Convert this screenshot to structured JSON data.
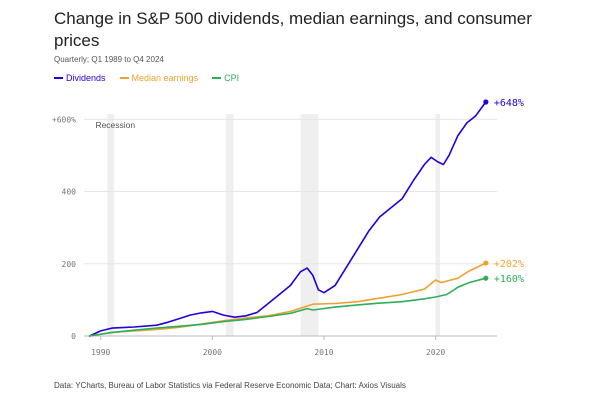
{
  "title": "Change in S&P 500 dividends, median earnings, and consumer prices",
  "subtitle": "Quarterly; Q1 1989 to Q4 2024",
  "source": "Data: YCharts, Bureau of Labor Statistics via Federal Reserve Economic Data; Chart: Axios Visuals",
  "colors": {
    "dividends": "#2200dd",
    "earnings": "#f0a030",
    "cpi": "#2fae5a",
    "recession": "#efefef",
    "grid": "#e6e6e6"
  },
  "chart_data": {
    "type": "line",
    "xlim": [
      1988.5,
      2025.5
    ],
    "ylim": [
      0,
      648
    ],
    "x_ticks": [
      {
        "value": 1990,
        "label": "1990"
      },
      {
        "value": 2000,
        "label": "2000"
      },
      {
        "value": 2010,
        "label": "2010"
      },
      {
        "value": 2020,
        "label": "2020"
      }
    ],
    "y_ticks": [
      {
        "value": 0,
        "label": "0"
      },
      {
        "value": 200,
        "label": "200"
      },
      {
        "value": 400,
        "label": "400"
      },
      {
        "value": 600,
        "label": "+600%"
      }
    ],
    "grid": true,
    "legend_position": "top-left",
    "recessions": [
      {
        "label": "Recession",
        "start": 1990.6,
        "end": 1991.2
      },
      {
        "start": 2001.2,
        "end": 2001.9
      },
      {
        "start": 2007.9,
        "end": 2009.5
      },
      {
        "start": 2020.0,
        "end": 2020.4
      }
    ],
    "series": [
      {
        "name": "Dividends",
        "color_key": "dividends",
        "end_label": "+648%",
        "points": [
          [
            1989,
            0
          ],
          [
            1990,
            14
          ],
          [
            1991,
            22
          ],
          [
            1993,
            25
          ],
          [
            1995,
            30
          ],
          [
            1996,
            38
          ],
          [
            1997,
            48
          ],
          [
            1998,
            58
          ],
          [
            1999,
            64
          ],
          [
            2000,
            68
          ],
          [
            2001,
            58
          ],
          [
            2002,
            52
          ],
          [
            2003,
            56
          ],
          [
            2004,
            65
          ],
          [
            2005,
            90
          ],
          [
            2006,
            115
          ],
          [
            2007,
            140
          ],
          [
            2007.9,
            178
          ],
          [
            2008.5,
            188
          ],
          [
            2009,
            168
          ],
          [
            2009.5,
            128
          ],
          [
            2010,
            120
          ],
          [
            2011,
            140
          ],
          [
            2012,
            190
          ],
          [
            2013,
            240
          ],
          [
            2014,
            290
          ],
          [
            2015,
            330
          ],
          [
            2016,
            355
          ],
          [
            2017,
            380
          ],
          [
            2018,
            430
          ],
          [
            2019,
            475
          ],
          [
            2019.6,
            495
          ],
          [
            2020.2,
            482
          ],
          [
            2020.7,
            475
          ],
          [
            2021.2,
            500
          ],
          [
            2022,
            555
          ],
          [
            2022.8,
            590
          ],
          [
            2023.6,
            610
          ],
          [
            2024.5,
            648
          ]
        ]
      },
      {
        "name": "Median earnings",
        "color_key": "earnings",
        "end_label": "+202%",
        "points": [
          [
            1989,
            0
          ],
          [
            1991,
            10
          ],
          [
            1993,
            14
          ],
          [
            1995,
            18
          ],
          [
            1997,
            24
          ],
          [
            1999,
            33
          ],
          [
            2001,
            42
          ],
          [
            2003,
            50
          ],
          [
            2005,
            56
          ],
          [
            2007,
            68
          ],
          [
            2009,
            88
          ],
          [
            2011,
            90
          ],
          [
            2013,
            95
          ],
          [
            2015,
            105
          ],
          [
            2017,
            115
          ],
          [
            2019,
            130
          ],
          [
            2020,
            155
          ],
          [
            2020.5,
            148
          ],
          [
            2021,
            152
          ],
          [
            2022,
            160
          ],
          [
            2023,
            180
          ],
          [
            2024.5,
            202
          ]
        ]
      },
      {
        "name": "CPI",
        "color_key": "cpi",
        "end_label": "+160%",
        "points": [
          [
            1989,
            0
          ],
          [
            1991,
            10
          ],
          [
            1993,
            16
          ],
          [
            1995,
            22
          ],
          [
            1997,
            27
          ],
          [
            1999,
            32
          ],
          [
            2001,
            40
          ],
          [
            2003,
            46
          ],
          [
            2005,
            54
          ],
          [
            2007,
            63
          ],
          [
            2008.5,
            76
          ],
          [
            2009,
            72
          ],
          [
            2011,
            80
          ],
          [
            2013,
            86
          ],
          [
            2015,
            91
          ],
          [
            2017,
            95
          ],
          [
            2019,
            103
          ],
          [
            2020,
            108
          ],
          [
            2021,
            115
          ],
          [
            2022,
            135
          ],
          [
            2023,
            148
          ],
          [
            2024.5,
            160
          ]
        ]
      }
    ]
  }
}
